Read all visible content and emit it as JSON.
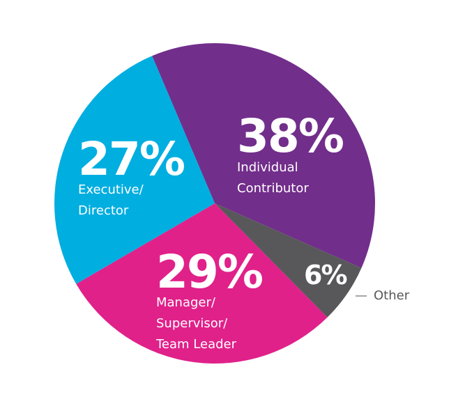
{
  "chart_data": {
    "type": "pie",
    "categories": [
      "Individual\nContributor",
      "Other",
      "Manager/\nSupervisor/\nTeam Leader",
      "Executive/\nDirector"
    ],
    "values": [
      38,
      6,
      29,
      27
    ],
    "value_labels": [
      "38%",
      "6%",
      "29%",
      "27%"
    ],
    "colors": [
      "#722e8b",
      "#58585a",
      "#e0218a",
      "#00aee0"
    ]
  }
}
